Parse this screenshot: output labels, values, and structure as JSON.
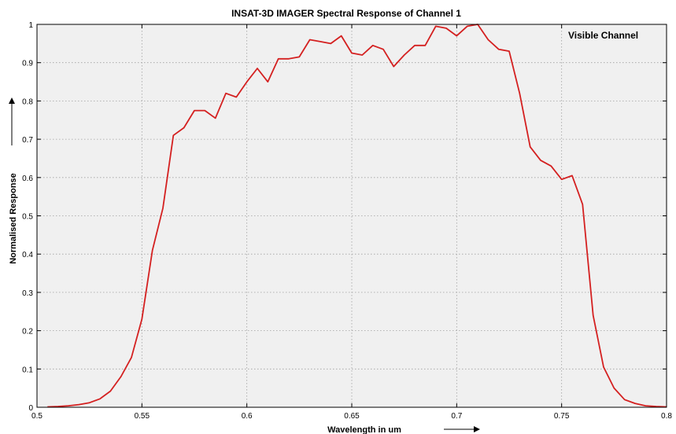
{
  "chart_data": {
    "type": "line",
    "title": "INSAT-3D IMAGER Spectral Response of Channel 1",
    "xlabel": "Wavelength in um",
    "ylabel": "Normalised Response",
    "annotation": "Visible Channel",
    "xlim": [
      0.5,
      0.8
    ],
    "ylim": [
      0,
      1
    ],
    "xticks": [
      0.5,
      0.55,
      0.6,
      0.65,
      0.7,
      0.75,
      0.8
    ],
    "xtick_labels": [
      "0.5",
      "0.55",
      "0.6",
      "0.65",
      "0.7",
      "0.75",
      "0.8"
    ],
    "yticks": [
      0,
      0.1,
      0.2,
      0.3,
      0.4,
      0.5,
      0.6,
      0.7,
      0.8,
      0.9,
      1
    ],
    "ytick_labels": [
      "0",
      "0.1",
      "0.2",
      "0.3",
      "0.4",
      "0.5",
      "0.6",
      "0.7",
      "0.8",
      "0.9",
      "1"
    ],
    "grid": true,
    "colors": {
      "line": "#d42020",
      "plot_bg": "#f0f0f0",
      "grid": "#a0a0a0"
    },
    "series": [
      {
        "x": [
          0.505,
          0.51,
          0.515,
          0.52,
          0.525,
          0.53,
          0.535,
          0.54,
          0.545,
          0.55,
          0.555,
          0.56,
          0.565,
          0.57,
          0.575,
          0.58,
          0.585,
          0.59,
          0.595,
          0.6,
          0.605,
          0.61,
          0.615,
          0.62,
          0.625,
          0.63,
          0.635,
          0.64,
          0.645,
          0.65,
          0.655,
          0.66,
          0.665,
          0.67,
          0.675,
          0.68,
          0.685,
          0.69,
          0.695,
          0.7,
          0.705,
          0.71,
          0.715,
          0.72,
          0.725,
          0.73,
          0.735,
          0.74,
          0.745,
          0.75,
          0.755,
          0.76,
          0.765,
          0.77,
          0.775,
          0.78,
          0.785,
          0.79,
          0.795,
          0.8
        ],
        "values": [
          0.001,
          0.002,
          0.004,
          0.007,
          0.012,
          0.022,
          0.042,
          0.08,
          0.13,
          0.23,
          0.41,
          0.52,
          0.71,
          0.73,
          0.775,
          0.775,
          0.755,
          0.82,
          0.81,
          0.85,
          0.885,
          0.85,
          0.91,
          0.91,
          0.915,
          0.96,
          0.955,
          0.95,
          0.97,
          0.925,
          0.92,
          0.945,
          0.935,
          0.89,
          0.92,
          0.945,
          0.945,
          0.995,
          0.99,
          0.97,
          0.995,
          1.0,
          0.96,
          0.935,
          0.93,
          0.82,
          0.68,
          0.645,
          0.63,
          0.595,
          0.605,
          0.53,
          0.24,
          0.105,
          0.05,
          0.02,
          0.01,
          0.004,
          0.002,
          0.001
        ]
      }
    ]
  }
}
